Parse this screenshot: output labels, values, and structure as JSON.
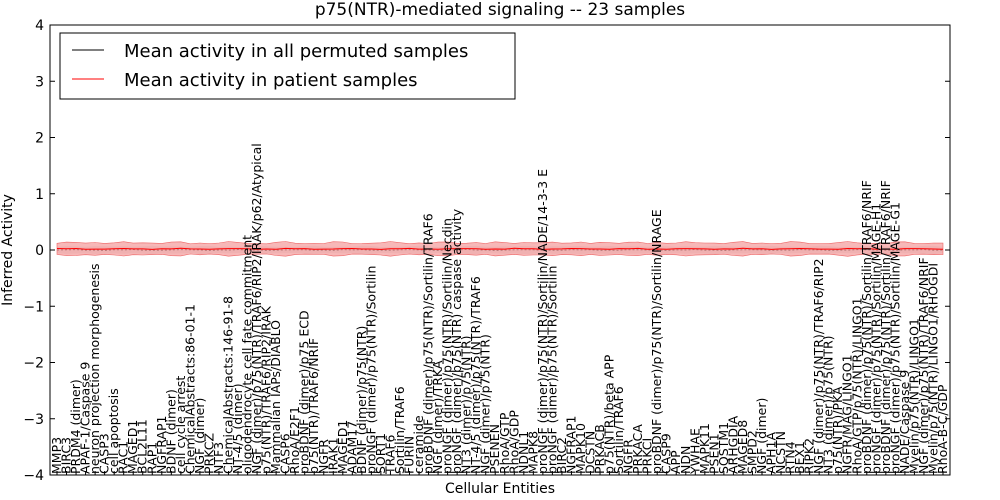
{
  "chart_data": {
    "type": "line",
    "title": "p75(NTR)-mediated signaling -- 23 samples",
    "xlabel": "Cellular Entities",
    "ylabel": "Inferred Activity",
    "ylim": [
      -4,
      4
    ],
    "yticks": [
      -4,
      -3,
      -2,
      -1,
      0,
      1,
      2,
      3,
      4
    ],
    "ytick_labels": [
      "−4",
      "−3",
      "−2",
      "−1",
      "0",
      "1",
      "2",
      "3",
      "4"
    ],
    "grid": false,
    "legend_position": "top-left",
    "series": [
      {
        "name": "Mean activity in all permuted samples",
        "color": "#000000",
        "band_color": "#d9d9d9",
        "mean": 0.0,
        "band": 0.07
      },
      {
        "name": "Mean activity in patient samples",
        "color": "#ff0000",
        "band_color": "#f4a0a0",
        "mean": 0.02,
        "band": 0.12
      }
    ],
    "categories": [
      "MMP3",
      "BIRC3",
      "PRDM4 (dimer)",
      "APAF-1/Caspase 9",
      "neuron projection morphogenesis",
      "CASP3",
      "cell apoptosis",
      "RAC1",
      "MAGED1",
      "BCL2L11",
      "RAP1",
      "NGFRAP1",
      "BDNF (dimer)",
      "cell cycle arrest",
      "ChemicalAbstracts:86-01-1",
      "NGF (dimer)",
      "PRKCZ",
      "NTF3",
      "ChemicalAbstracts:146-91-8",
      "NT-4/5 (dimer)",
      "oligodendrocyte cell fate commitment",
      "NGF (dimer)/p75(NTR)/TRAF6/RIP2/IRAK/p62/Atypical",
      "p75(NTR)/TRAF6/RIP2/IRAK",
      "Mammalian IAPs/DIABLO",
      "CASP6",
      "RhoA/E2F1",
      "proBDNF (dimer)/p75 ECD",
      "p75(NTR)/TRAF6/NRIF",
      "NGFR",
      "IRAK1",
      "MAGED1",
      "ADAM17",
      "BDNF (dimer)/p75(NTR)",
      "proNGF (dimer)/p75(NTR)/Sortilin",
      "SORT1",
      "TRAF6",
      "Sortilin/TRAF6",
      "FURIN",
      "ceramide",
      "proBDNF (dimer)/p75(NTR)/Sortilin/TRAF6",
      "NGF (dimer)/TRKA",
      "proNGF (dimer)/p75(NTR)/Sortilin/Necdin",
      "proNGF (dimer)/p75(NTR) caspase activity",
      "NT3 (dimer)/p75(NTR)",
      "NT-4/5 (dimer)/p75(NTR)/TRAF6",
      "NGF (dimer)/p75(NTR)",
      "PSENEN",
      "RhoA/GTP",
      "RhoA/GDP",
      "NDNL1",
      "MAPK8",
      "proNGF (dimer)/p75(NTR)/Sortilin/NADE/14-3-3 E",
      "proNGF (dimer)/p75(NTR)/Sortilin",
      "BIRC2",
      "NGFRAP1",
      "MAPK10",
      "DCSTN",
      "PRKACB",
      "p75(NTR)/beta APP",
      "Sortilin/TRAF6",
      "NGFR",
      "PRKACA",
      "PRKCI",
      "proBDNF (dimer)/p75(NTR)/Sortilin/NRAGE",
      "CASP9",
      "APP",
      "NDN",
      "YWHAE",
      "MAPK11",
      "PSEN1",
      "SQSTM1",
      "ARHGDIA",
      "MAGED8",
      "SMPD2",
      "NGF (dimer)",
      "APH1A",
      "NCSTN",
      "RTN4",
      "BEX1",
      "RIPK2",
      "NGF (dimer)/p75(NTR)/TRAF6/RIP2",
      "NT3 (dimer)/p75(NTR)",
      "p75(NTR)/PKA",
      "NGFR/MAG/LINGO1",
      "RhoA/GTP/p75(NTR)/LINGO1",
      "proBDNF (dimer)/p75(NTR)/Sortilin/TRAF6/NRIF",
      "proNGF (dimer)/p75(NTR)/Sortilin/MAGE-H1",
      "proBDNF (dimer)/p75(NTR)/Sortilin/TRAF6/NRIF",
      "proNGF (dimer)/p75(NTR)/Sortilin/MAGE-G1",
      "NADE/Caspase 9",
      "Myelin/p75(NTR)/LINGO1",
      "NGF (dimer)/p75(NTR)/TRAF6/NRIF",
      "Myelin/p75(NTR)/LINGO1/RHOGDI",
      "RhoA-B-C/GDP"
    ]
  }
}
